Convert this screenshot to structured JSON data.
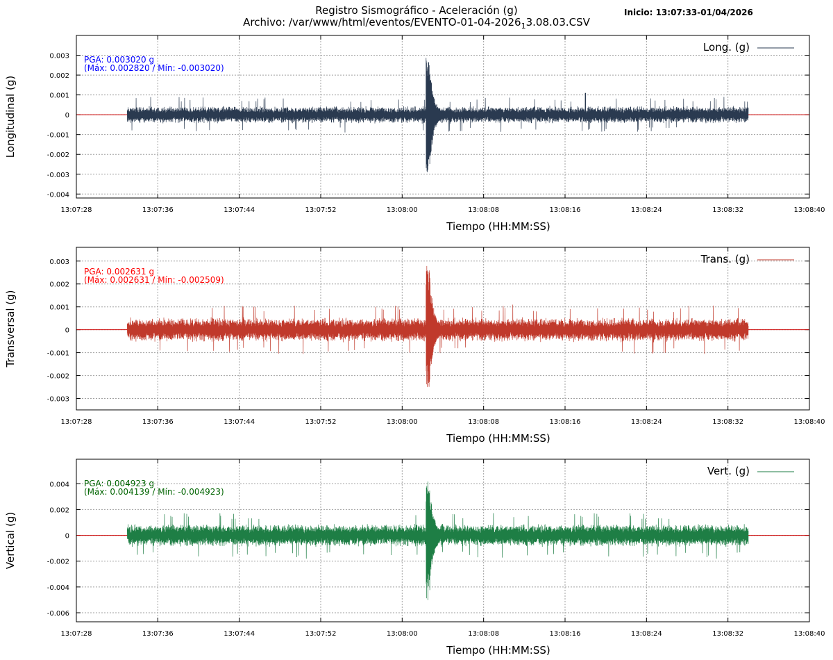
{
  "header": {
    "title": "Registro Sismográfico - Aceleración (g)",
    "file_prefix": "Archivo: /var/www/html/eventos/EVENTO-01-04-2026",
    "file_sub": "1",
    "file_suffix": "3.08.03.CSV",
    "start": "Inicio: 13:07:33-01/04/2026"
  },
  "chart_data": [
    {
      "type": "line",
      "name": "Long. (g)",
      "ylabel": "Longitudinal (g)",
      "xlabel": "Tiempo (HH:MM:SS)",
      "color": "#2a3a50",
      "annotation_color": "#0000ff",
      "annotation": [
        "PGA: 0.003020 g",
        "(Máx: 0.002820 / Mín: -0.003020)"
      ],
      "pga": 0.00302,
      "max": 0.00282,
      "min": -0.00302,
      "xlim": [
        "13:07:28",
        "13:08:40"
      ],
      "ylim": [
        -0.0042,
        0.004
      ],
      "yticks": [
        -0.004,
        -0.003,
        -0.002,
        -0.001,
        0,
        0.001,
        0.002,
        0.003
      ],
      "ytick_labels": [
        "-0.004",
        "-0.003",
        "-0.002",
        "-0.001",
        "0",
        "0.001",
        "0.002",
        "0.003"
      ],
      "xticks": [
        "13:07:28",
        "13:07:36",
        "13:07:44",
        "13:07:52",
        "13:08:00",
        "13:08:08",
        "13:08:16",
        "13:08:24",
        "13:08:32",
        "13:08:40"
      ],
      "signal_start": "13:07:33",
      "signal_end": "13:08:34",
      "noise_amplitude": 0.00045,
      "event_time": "13:08:02.5",
      "secondary_peak": {
        "time": "13:08:18",
        "value": 0.0011
      },
      "grid": true,
      "legend": "top-right"
    },
    {
      "type": "line",
      "name": "Trans. (g)",
      "ylabel": "Transversal (g)",
      "xlabel": "Tiempo (HH:MM:SS)",
      "color": "#c0392b",
      "annotation_color": "#ff0000",
      "annotation": [
        "PGA: 0.002631 g",
        "(Máx: 0.002631 / Mín: -0.002509)"
      ],
      "pga": 0.002631,
      "max": 0.002631,
      "min": -0.002509,
      "xlim": [
        "13:07:28",
        "13:08:40"
      ],
      "ylim": [
        -0.0035,
        0.0036
      ],
      "yticks": [
        -0.003,
        -0.002,
        -0.001,
        0,
        0.001,
        0.002,
        0.003
      ],
      "ytick_labels": [
        "-0.003",
        "-0.002",
        "-0.001",
        "0",
        "0.001",
        "0.002",
        "0.003"
      ],
      "xticks": [
        "13:07:28",
        "13:07:36",
        "13:07:44",
        "13:07:52",
        "13:08:00",
        "13:08:08",
        "13:08:16",
        "13:08:24",
        "13:08:32",
        "13:08:40"
      ],
      "signal_start": "13:07:33",
      "signal_end": "13:08:34",
      "noise_amplitude": 0.00055,
      "event_time": "13:08:02.5",
      "grid": true,
      "legend": "top-right"
    },
    {
      "type": "line",
      "name": "Vert. (g)",
      "ylabel": "Vertical (g)",
      "xlabel": "Tiempo (HH:MM:SS)",
      "color": "#1e7e45",
      "annotation_color": "#006400",
      "annotation": [
        "PGA: 0.004923 g",
        "(Máx: 0.004139 / Mín: -0.004923)"
      ],
      "pga": 0.004923,
      "max": 0.004139,
      "min": -0.004923,
      "xlim": [
        "13:07:28",
        "13:08:40"
      ],
      "ylim": [
        -0.0067,
        0.0059
      ],
      "yticks": [
        -0.006,
        -0.004,
        -0.002,
        0,
        0.002,
        0.004
      ],
      "ytick_labels": [
        "-0.006",
        "-0.004",
        "-0.002",
        "0",
        "0.002",
        "0.004"
      ],
      "xticks": [
        "13:07:28",
        "13:07:36",
        "13:07:44",
        "13:07:52",
        "13:08:00",
        "13:08:08",
        "13:08:16",
        "13:08:24",
        "13:08:32",
        "13:08:40"
      ],
      "signal_start": "13:07:33",
      "signal_end": "13:08:34",
      "noise_amplitude": 0.0009,
      "event_time": "13:08:02.5",
      "grid": true,
      "legend": "top-right"
    }
  ]
}
